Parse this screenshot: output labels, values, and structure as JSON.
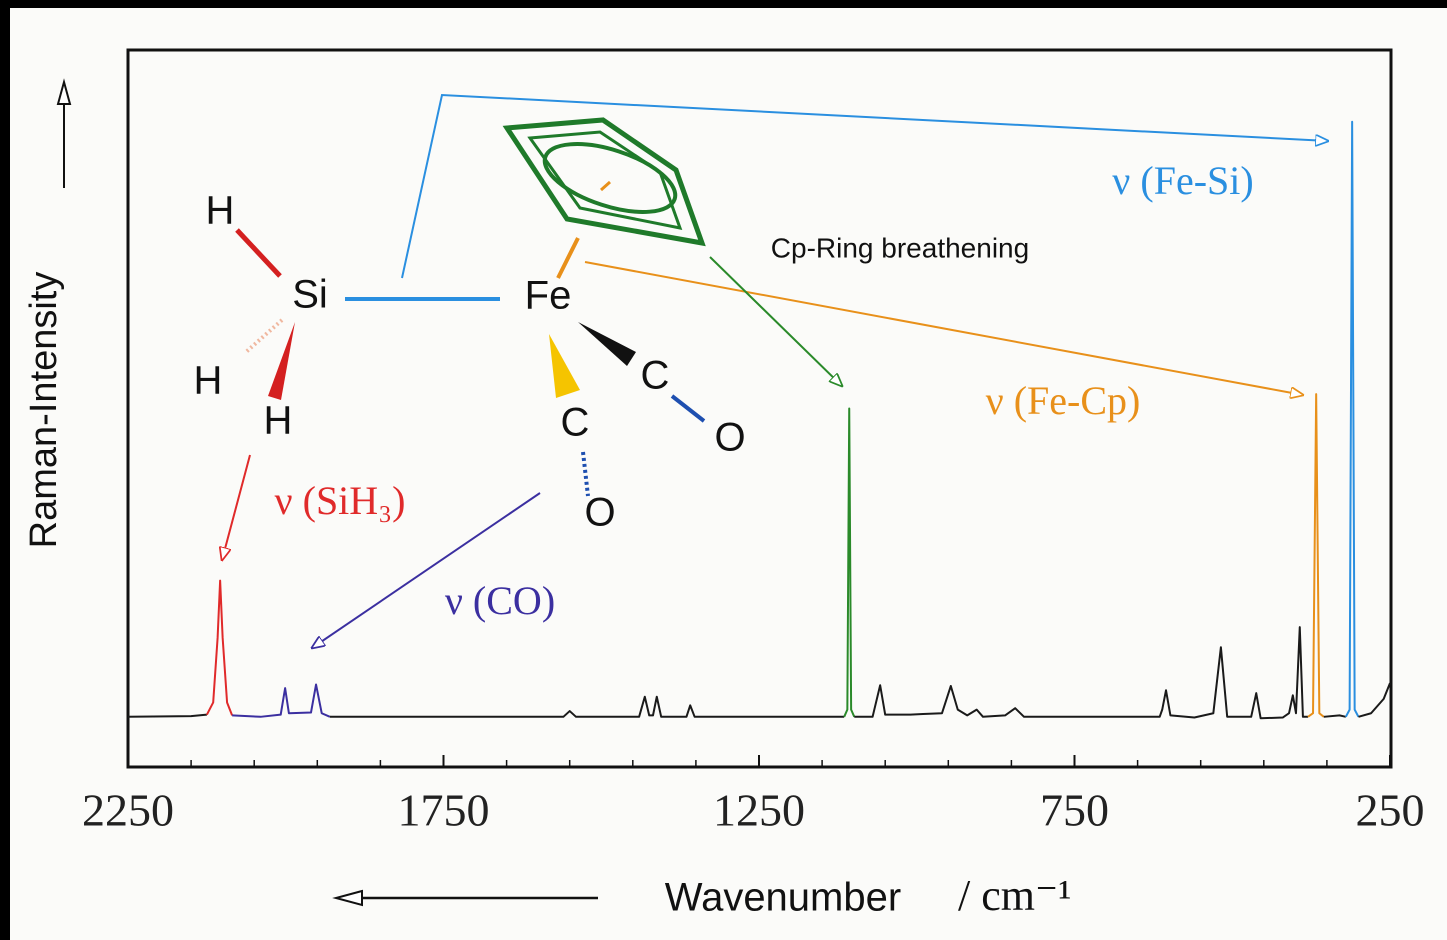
{
  "chart_data": {
    "type": "line",
    "xlabel": "Wavenumber",
    "x_unit": "/ cm⁻¹",
    "ylabel": "Raman-Intensity",
    "xlim": [
      2250,
      250
    ],
    "xticks": [
      2250,
      1750,
      1250,
      750,
      250
    ],
    "xminorticks": [
      2150,
      2050,
      1950,
      1850,
      1650,
      1550,
      1450,
      1350,
      1150,
      1050,
      950,
      850,
      650,
      550,
      450,
      350
    ],
    "ylim": [
      0,
      100
    ],
    "series": [
      {
        "color": "#1a1a1a",
        "x": [
          2250,
          2150,
          2125
        ],
        "values": [
          7,
          7.1,
          7.3
        ]
      },
      {
        "color": "#e02a2a",
        "x": [
          2125,
          2115,
          2108,
          2104,
          2100,
          2093,
          2085
        ],
        "values": [
          7.3,
          9,
          18,
          26,
          18,
          9,
          7.2
        ]
      },
      {
        "color": "#3b2fa0",
        "x": [
          2085,
          2040,
          2008,
          2001,
          1995,
          1960,
          1952,
          1943,
          1930
        ],
        "values": [
          7.2,
          7,
          7.3,
          11,
          7.5,
          7.6,
          11.5,
          7.5,
          7
        ]
      },
      {
        "color": "#1a1a1a",
        "x": [
          1930,
          1800,
          1560,
          1550,
          1540,
          1440,
          1431,
          1424,
          1418,
          1412,
          1405,
          1365,
          1359,
          1352,
          1200,
          1115
        ],
        "values": [
          7,
          7,
          7,
          7.8,
          7,
          7,
          9.8,
          7.2,
          7.2,
          9.8,
          7,
          7,
          8.6,
          7,
          7,
          7
        ]
      },
      {
        "color": "#2a8a2a",
        "x": [
          1115,
          1110,
          1107,
          1104,
          1099
        ],
        "values": [
          7,
          8,
          50,
          8,
          7
        ]
      },
      {
        "color": "#1a1a1a",
        "x": [
          1099,
          1070,
          1058,
          1050,
          1010,
          990,
          960,
          946,
          935,
          920,
          905,
          895,
          860,
          844,
          830,
          700,
          615,
          611,
          605,
          598,
          560,
          530,
          518,
          508,
          470,
          462,
          455,
          420,
          410,
          404,
          399,
          393,
          388,
          380
        ],
        "values": [
          7,
          7,
          11.4,
          7.3,
          7.3,
          7.4,
          7.5,
          11.3,
          8,
          7.2,
          8,
          7,
          7.2,
          8.2,
          7,
          7,
          7,
          8,
          10.7,
          7.2,
          6.9,
          7.5,
          16.7,
          7,
          7,
          10.3,
          6.8,
          6.9,
          7.5,
          10,
          7.5,
          19.5,
          7,
          7
        ]
      },
      {
        "color": "#e8901a",
        "x": [
          380,
          372,
          367,
          362,
          355
        ],
        "values": [
          7,
          7.5,
          52,
          7.5,
          7
        ]
      },
      {
        "color": "#1a1a1a",
        "x": [
          355,
          330,
          320
        ],
        "values": [
          7,
          7.2,
          7
        ]
      },
      {
        "color": "#2a8fe0",
        "x": [
          320,
          314,
          310,
          306,
          300
        ],
        "values": [
          7,
          8,
          90,
          8,
          7
        ]
      },
      {
        "color": "#1a1a1a",
        "x": [
          300,
          280,
          260,
          250
        ],
        "values": [
          7,
          7.5,
          9.5,
          11.7
        ]
      }
    ],
    "annotations": [
      {
        "text": "ν (Fe-Si)",
        "color": "#2a8fe0"
      },
      {
        "text": "ν (Fe-Cp)",
        "color": "#e8901a"
      },
      {
        "text": "ν (SiH₃)",
        "color": "#e02a2a"
      },
      {
        "text": "ν (CO)",
        "color": "#3b2fa0"
      },
      {
        "text": "Cp-Ring breathening",
        "color": "#111111"
      }
    ],
    "molecule_labels": [
      "H",
      "Si",
      "H",
      "H",
      "Fe",
      "C",
      "O",
      "C",
      "O"
    ]
  }
}
